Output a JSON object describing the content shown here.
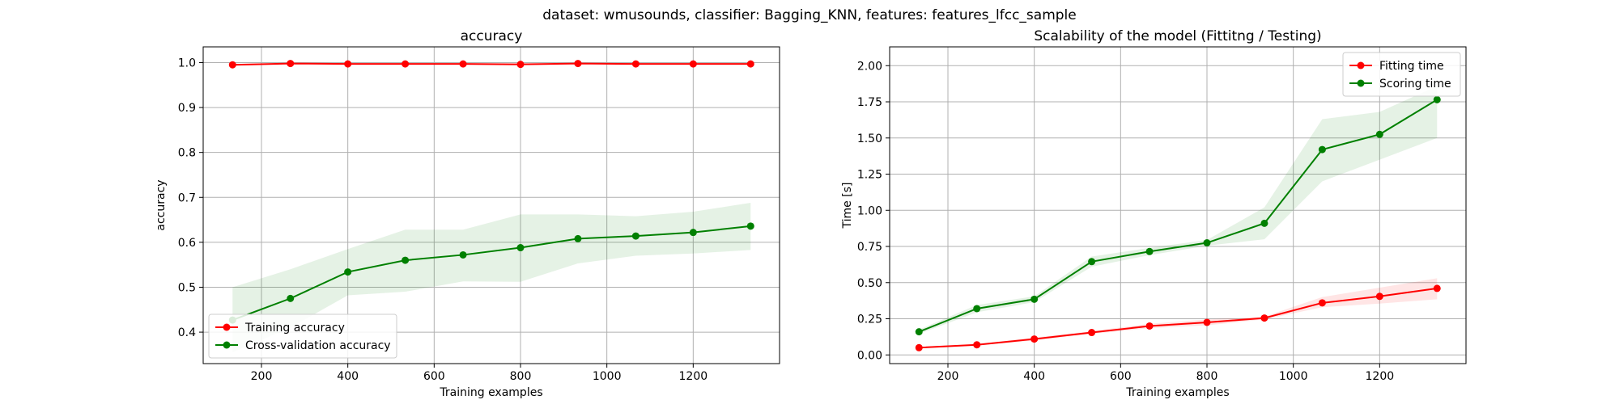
{
  "figure": {
    "suptitle": "dataset: wmusounds, classifier: Bagging_KNN, features: features_lfcc_sample"
  },
  "colors": {
    "red": "#ff0000",
    "green": "#008000",
    "grid": "#b0b0b0"
  },
  "chart_data": [
    {
      "type": "line",
      "title": "accuracy",
      "xlabel": "Training examples",
      "ylabel": "accuracy",
      "xlim": [
        65,
        1400
      ],
      "ylim": [
        0.33,
        1.035
      ],
      "xticks": [
        200,
        400,
        600,
        800,
        1000,
        1200
      ],
      "yticks": [
        0.4,
        0.5,
        0.6,
        0.7,
        0.8,
        0.9,
        1.0
      ],
      "ytick_labels": [
        "0.4",
        "0.5",
        "0.6",
        "0.7",
        "0.8",
        "0.9",
        "1.0"
      ],
      "grid": true,
      "legend": "lower-left",
      "x": [
        133,
        267,
        400,
        533,
        667,
        800,
        933,
        1067,
        1200,
        1333
      ],
      "series": [
        {
          "name": "Training accuracy",
          "color": "red",
          "values": [
            0.995,
            0.998,
            0.997,
            0.997,
            0.997,
            0.996,
            0.998,
            0.997,
            0.997,
            0.997
          ],
          "band_lower": [
            0.993,
            0.997,
            0.996,
            0.996,
            0.996,
            0.995,
            0.997,
            0.996,
            0.996,
            0.996
          ],
          "band_upper": [
            0.997,
            0.999,
            0.998,
            0.998,
            0.998,
            0.997,
            0.999,
            0.998,
            0.998,
            0.998
          ]
        },
        {
          "name": "Cross-validation accuracy",
          "color": "green",
          "values": [
            0.427,
            0.475,
            0.534,
            0.56,
            0.572,
            0.588,
            0.608,
            0.614,
            0.622,
            0.636
          ],
          "band_lower": [
            0.355,
            0.41,
            0.482,
            0.49,
            0.513,
            0.512,
            0.553,
            0.57,
            0.575,
            0.583
          ],
          "band_upper": [
            0.5,
            0.54,
            0.585,
            0.628,
            0.628,
            0.662,
            0.662,
            0.658,
            0.668,
            0.688
          ]
        }
      ]
    },
    {
      "type": "line",
      "title": "Scalability of the model (Fittitng / Testing)",
      "xlabel": "Training examples",
      "ylabel": "Time [s]",
      "xlim": [
        65,
        1400
      ],
      "ylim": [
        -0.06,
        2.13
      ],
      "xticks": [
        200,
        400,
        600,
        800,
        1000,
        1200
      ],
      "yticks": [
        0.0,
        0.25,
        0.5,
        0.75,
        1.0,
        1.25,
        1.5,
        1.75,
        2.0
      ],
      "ytick_labels": [
        "0.00",
        "0.25",
        "0.50",
        "0.75",
        "1.00",
        "1.25",
        "1.50",
        "1.75",
        "2.00"
      ],
      "grid": true,
      "legend": "upper-right",
      "x": [
        133,
        267,
        400,
        533,
        667,
        800,
        933,
        1067,
        1200,
        1333
      ],
      "series": [
        {
          "name": "Fitting time",
          "color": "red",
          "values": [
            0.05,
            0.07,
            0.11,
            0.155,
            0.2,
            0.225,
            0.255,
            0.36,
            0.405,
            0.46
          ],
          "band_lower": [
            0.045,
            0.065,
            0.1,
            0.145,
            0.185,
            0.205,
            0.245,
            0.33,
            0.355,
            0.385
          ],
          "band_upper": [
            0.055,
            0.075,
            0.12,
            0.165,
            0.215,
            0.245,
            0.265,
            0.4,
            0.465,
            0.53
          ]
        },
        {
          "name": "Scoring time",
          "color": "green",
          "values": [
            0.16,
            0.32,
            0.385,
            0.645,
            0.715,
            0.775,
            0.91,
            1.42,
            1.525,
            1.765
          ],
          "band_lower": [
            0.145,
            0.295,
            0.365,
            0.61,
            0.69,
            0.755,
            0.8,
            1.2,
            1.35,
            1.5
          ],
          "band_upper": [
            0.175,
            0.345,
            0.405,
            0.68,
            0.74,
            0.795,
            1.02,
            1.63,
            1.68,
            1.86
          ]
        }
      ]
    }
  ]
}
